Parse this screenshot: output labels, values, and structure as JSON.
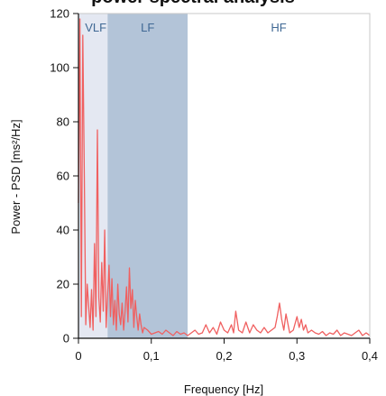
{
  "title": "power spectral analysis",
  "chart_data": {
    "type": "line",
    "title": "power spectral analysis",
    "xlabel": "Frequency [Hz]",
    "ylabel": "Power - PSD [ms²/Hz]",
    "xlim": [
      0,
      0.4
    ],
    "ylim": [
      0,
      120
    ],
    "xticks": [
      "0",
      "0,1",
      "0,2",
      "0,3",
      "0,4"
    ],
    "yticks": [
      "0",
      "20",
      "40",
      "60",
      "80",
      "100",
      "120"
    ],
    "grid": false,
    "bands": [
      {
        "name": "VLF",
        "from": 0.0,
        "to": 0.04,
        "color": "#e4e8f2"
      },
      {
        "name": "LF",
        "from": 0.04,
        "to": 0.15,
        "color": "#b3c4d8"
      },
      {
        "name": "HF",
        "from": 0.15,
        "to": 0.4,
        "color": "#ffffff"
      }
    ],
    "series": [
      {
        "color": "#f06060",
        "x": [
          0.0,
          0.002,
          0.004,
          0.006,
          0.008,
          0.01,
          0.012,
          0.014,
          0.016,
          0.018,
          0.02,
          0.022,
          0.024,
          0.026,
          0.028,
          0.03,
          0.032,
          0.034,
          0.036,
          0.038,
          0.04,
          0.042,
          0.044,
          0.046,
          0.048,
          0.05,
          0.052,
          0.054,
          0.056,
          0.058,
          0.06,
          0.062,
          0.064,
          0.066,
          0.068,
          0.07,
          0.072,
          0.074,
          0.076,
          0.078,
          0.08,
          0.082,
          0.084,
          0.086,
          0.088,
          0.09,
          0.095,
          0.1,
          0.105,
          0.11,
          0.115,
          0.12,
          0.125,
          0.13,
          0.135,
          0.14,
          0.145,
          0.15,
          0.155,
          0.16,
          0.165,
          0.17,
          0.175,
          0.18,
          0.185,
          0.19,
          0.195,
          0.2,
          0.205,
          0.21,
          0.213,
          0.216,
          0.22,
          0.225,
          0.23,
          0.235,
          0.24,
          0.245,
          0.25,
          0.255,
          0.26,
          0.265,
          0.27,
          0.273,
          0.276,
          0.279,
          0.282,
          0.285,
          0.29,
          0.295,
          0.3,
          0.303,
          0.306,
          0.309,
          0.312,
          0.315,
          0.32,
          0.325,
          0.33,
          0.335,
          0.34,
          0.345,
          0.35,
          0.355,
          0.36,
          0.365,
          0.37,
          0.375,
          0.38,
          0.385,
          0.39,
          0.395,
          0.4
        ],
        "y": [
          50,
          118,
          8,
          112,
          60,
          5,
          20,
          12,
          4,
          18,
          3,
          35,
          8,
          77,
          15,
          6,
          28,
          10,
          40,
          4,
          16,
          27,
          8,
          22,
          5,
          14,
          3,
          20,
          9,
          5,
          13,
          3,
          10,
          19,
          6,
          26,
          11,
          18,
          4,
          14,
          8,
          3,
          9,
          5,
          2,
          4,
          3,
          1.5,
          2,
          2.5,
          1.5,
          3,
          2,
          1,
          2.5,
          1.5,
          2,
          1,
          2,
          3,
          1.5,
          2,
          5,
          2,
          4,
          1.5,
          6,
          3,
          2,
          5,
          2,
          10,
          3,
          2,
          6,
          2,
          5,
          3,
          2,
          4,
          2,
          3,
          4,
          8,
          13,
          7,
          3,
          9,
          2,
          3,
          8,
          4,
          7,
          3,
          5,
          2,
          3,
          2,
          1.5,
          2.5,
          1,
          2,
          1.5,
          3,
          1,
          2,
          1.5,
          1,
          2,
          3,
          1,
          2,
          1
        ]
      }
    ]
  }
}
